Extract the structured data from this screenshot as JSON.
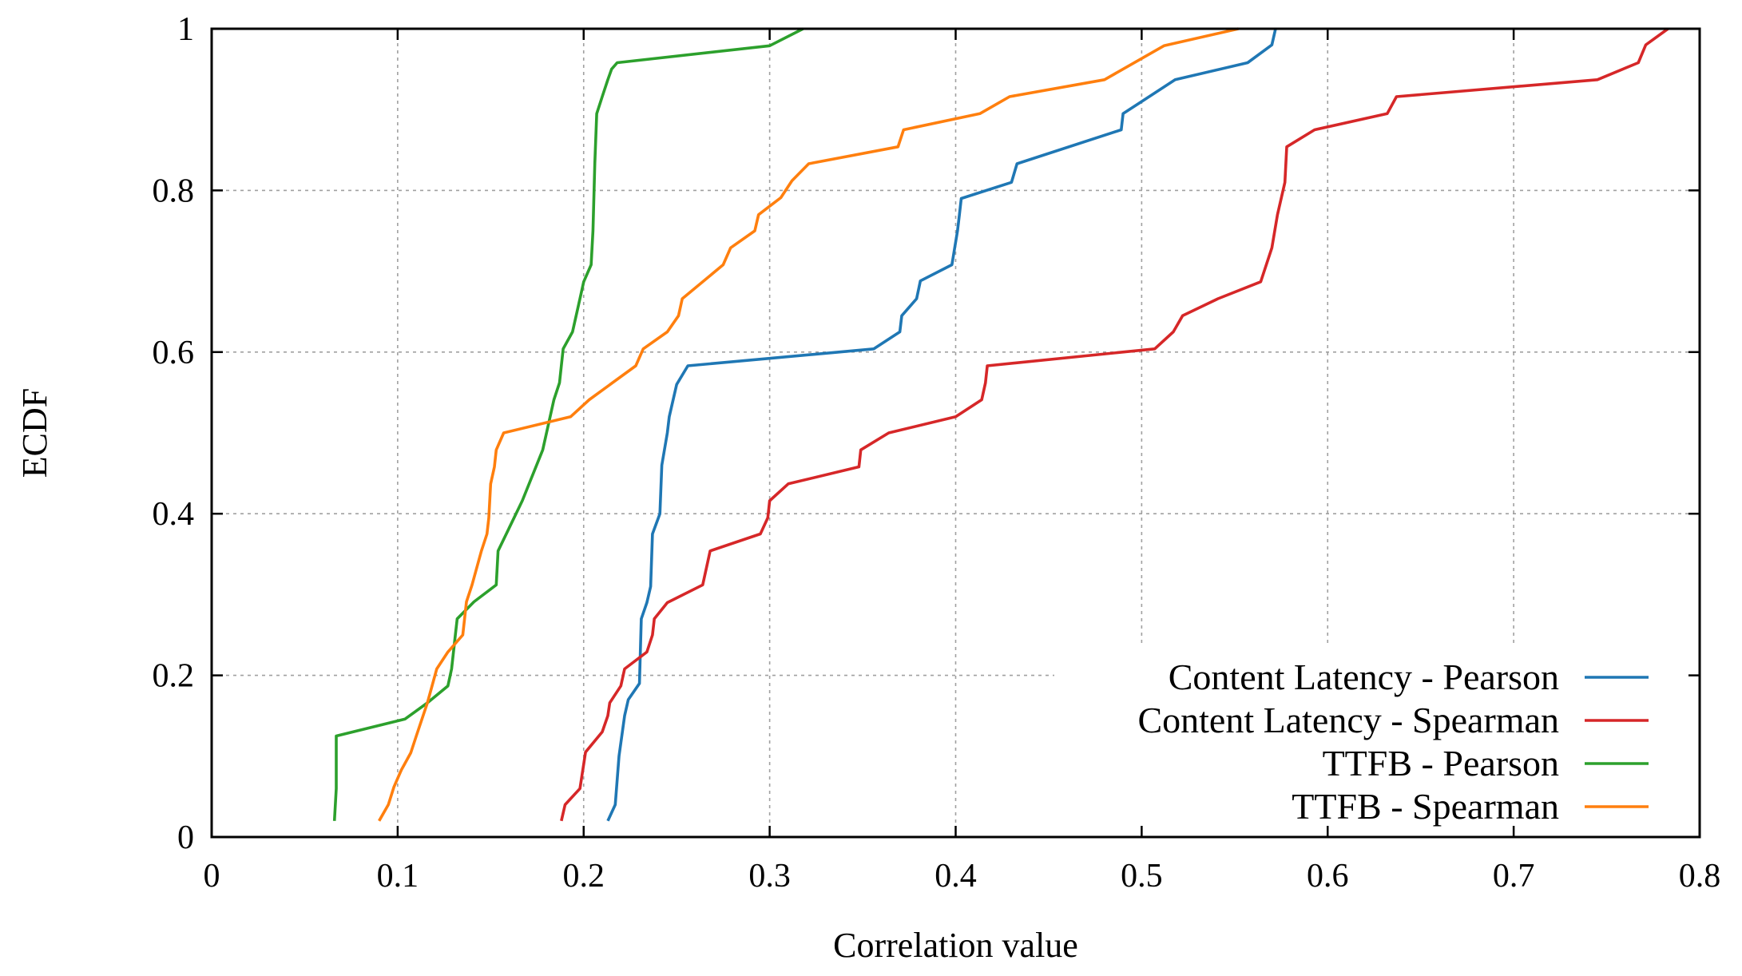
{
  "chart_data": {
    "type": "line",
    "title": "",
    "xlabel": "Correlation value",
    "ylabel": "ECDF",
    "xlim": [
      0,
      0.8
    ],
    "ylim": [
      0,
      1
    ],
    "xticks": [
      0,
      0.1,
      0.2,
      0.3,
      0.4,
      0.5,
      0.6,
      0.7,
      0.8
    ],
    "yticks": [
      0,
      0.2,
      0.4,
      0.6,
      0.8,
      1
    ],
    "xtick_labels": [
      "0",
      "0.1",
      "0.2",
      "0.3",
      "0.4",
      "0.5",
      "0.6",
      "0.7",
      "0.8"
    ],
    "ytick_labels": [
      "0",
      "0.2",
      "0.4",
      "0.6",
      "0.8",
      "1"
    ],
    "grid": true,
    "legend_position": "bottom-right",
    "series": [
      {
        "name": "Content Latency - Pearson",
        "color": "#1f77b4",
        "points": [
          [
            0.213,
            0.02
          ],
          [
            0.217,
            0.04
          ],
          [
            0.219,
            0.1
          ],
          [
            0.222,
            0.15
          ],
          [
            0.224,
            0.17
          ],
          [
            0.23,
            0.19
          ],
          [
            0.231,
            0.27
          ],
          [
            0.234,
            0.29
          ],
          [
            0.236,
            0.31
          ],
          [
            0.237,
            0.375
          ],
          [
            0.241,
            0.4
          ],
          [
            0.242,
            0.46
          ],
          [
            0.245,
            0.5
          ],
          [
            0.246,
            0.52
          ],
          [
            0.25,
            0.56
          ],
          [
            0.256,
            0.583
          ],
          [
            0.356,
            0.604
          ],
          [
            0.37,
            0.625
          ],
          [
            0.371,
            0.645
          ],
          [
            0.379,
            0.666
          ],
          [
            0.381,
            0.688
          ],
          [
            0.398,
            0.708
          ],
          [
            0.401,
            0.75
          ],
          [
            0.402,
            0.77
          ],
          [
            0.403,
            0.79
          ],
          [
            0.43,
            0.81
          ],
          [
            0.433,
            0.833
          ],
          [
            0.489,
            0.875
          ],
          [
            0.49,
            0.895
          ],
          [
            0.518,
            0.937
          ],
          [
            0.557,
            0.958
          ],
          [
            0.57,
            0.98
          ],
          [
            0.572,
            1.0
          ]
        ]
      },
      {
        "name": "Content Latency - Spearman",
        "color": "#d62728",
        "points": [
          [
            0.188,
            0.02
          ],
          [
            0.19,
            0.04
          ],
          [
            0.198,
            0.06
          ],
          [
            0.2,
            0.09
          ],
          [
            0.201,
            0.105
          ],
          [
            0.21,
            0.13
          ],
          [
            0.213,
            0.15
          ],
          [
            0.214,
            0.166
          ],
          [
            0.22,
            0.187
          ],
          [
            0.222,
            0.208
          ],
          [
            0.234,
            0.229
          ],
          [
            0.237,
            0.25
          ],
          [
            0.238,
            0.27
          ],
          [
            0.245,
            0.29
          ],
          [
            0.264,
            0.312
          ],
          [
            0.268,
            0.354
          ],
          [
            0.295,
            0.375
          ],
          [
            0.299,
            0.395
          ],
          [
            0.3,
            0.416
          ],
          [
            0.31,
            0.437
          ],
          [
            0.348,
            0.458
          ],
          [
            0.349,
            0.479
          ],
          [
            0.364,
            0.5
          ],
          [
            0.4,
            0.52
          ],
          [
            0.414,
            0.541
          ],
          [
            0.416,
            0.562
          ],
          [
            0.417,
            0.583
          ],
          [
            0.507,
            0.604
          ],
          [
            0.517,
            0.625
          ],
          [
            0.522,
            0.645
          ],
          [
            0.541,
            0.666
          ],
          [
            0.564,
            0.687
          ],
          [
            0.57,
            0.729
          ],
          [
            0.573,
            0.77
          ],
          [
            0.577,
            0.81
          ],
          [
            0.578,
            0.854
          ],
          [
            0.593,
            0.875
          ],
          [
            0.632,
            0.895
          ],
          [
            0.637,
            0.916
          ],
          [
            0.745,
            0.937
          ],
          [
            0.767,
            0.958
          ],
          [
            0.771,
            0.98
          ],
          [
            0.783,
            1.0
          ]
        ]
      },
      {
        "name": "TTFB - Pearson",
        "color": "#2ca02c",
        "points": [
          [
            0.066,
            0.02
          ],
          [
            0.067,
            0.06
          ],
          [
            0.067,
            0.125
          ],
          [
            0.104,
            0.146
          ],
          [
            0.116,
            0.166
          ],
          [
            0.127,
            0.187
          ],
          [
            0.129,
            0.208
          ],
          [
            0.131,
            0.25
          ],
          [
            0.132,
            0.27
          ],
          [
            0.141,
            0.291
          ],
          [
            0.153,
            0.312
          ],
          [
            0.154,
            0.354
          ],
          [
            0.167,
            0.416
          ],
          [
            0.178,
            0.479
          ],
          [
            0.184,
            0.541
          ],
          [
            0.187,
            0.562
          ],
          [
            0.188,
            0.583
          ],
          [
            0.189,
            0.604
          ],
          [
            0.194,
            0.625
          ],
          [
            0.198,
            0.666
          ],
          [
            0.2,
            0.687
          ],
          [
            0.204,
            0.708
          ],
          [
            0.205,
            0.75
          ],
          [
            0.206,
            0.833
          ],
          [
            0.207,
            0.895
          ],
          [
            0.21,
            0.916
          ],
          [
            0.213,
            0.937
          ],
          [
            0.215,
            0.95
          ],
          [
            0.218,
            0.958
          ],
          [
            0.3,
            0.979
          ],
          [
            0.318,
            1.0
          ]
        ]
      },
      {
        "name": "TTFB - Spearman",
        "color": "#ff7f0e",
        "points": [
          [
            0.09,
            0.02
          ],
          [
            0.095,
            0.04
          ],
          [
            0.098,
            0.062
          ],
          [
            0.102,
            0.083
          ],
          [
            0.107,
            0.104
          ],
          [
            0.11,
            0.125
          ],
          [
            0.116,
            0.166
          ],
          [
            0.121,
            0.208
          ],
          [
            0.127,
            0.229
          ],
          [
            0.135,
            0.25
          ],
          [
            0.137,
            0.291
          ],
          [
            0.14,
            0.312
          ],
          [
            0.145,
            0.354
          ],
          [
            0.148,
            0.375
          ],
          [
            0.149,
            0.395
          ],
          [
            0.15,
            0.437
          ],
          [
            0.152,
            0.458
          ],
          [
            0.153,
            0.479
          ],
          [
            0.157,
            0.5
          ],
          [
            0.193,
            0.52
          ],
          [
            0.203,
            0.541
          ],
          [
            0.228,
            0.583
          ],
          [
            0.232,
            0.604
          ],
          [
            0.245,
            0.625
          ],
          [
            0.251,
            0.645
          ],
          [
            0.253,
            0.666
          ],
          [
            0.275,
            0.708
          ],
          [
            0.279,
            0.729
          ],
          [
            0.292,
            0.75
          ],
          [
            0.294,
            0.77
          ],
          [
            0.306,
            0.791
          ],
          [
            0.312,
            0.812
          ],
          [
            0.321,
            0.833
          ],
          [
            0.369,
            0.854
          ],
          [
            0.372,
            0.875
          ],
          [
            0.413,
            0.895
          ],
          [
            0.429,
            0.916
          ],
          [
            0.48,
            0.937
          ],
          [
            0.512,
            0.979
          ],
          [
            0.552,
            1.0
          ]
        ]
      }
    ]
  }
}
